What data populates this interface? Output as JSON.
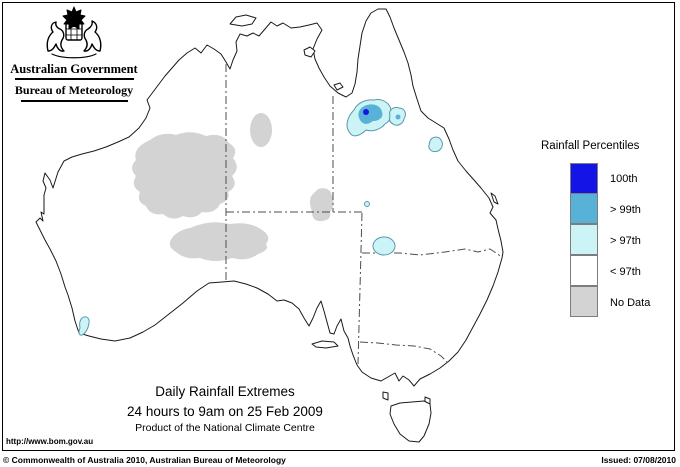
{
  "header": {
    "government_label": "Australian Government",
    "agency_label": "Bureau of Meteorology"
  },
  "legend": {
    "title": "Rainfall Percentiles",
    "entries": [
      {
        "key": "p100",
        "label": "100th",
        "color": "#1414e6"
      },
      {
        "key": "p99",
        "label": "> 99th",
        "color": "#58b2d8"
      },
      {
        "key": "p97",
        "label": "> 97th",
        "color": "#ccf4f6"
      },
      {
        "key": "lt97",
        "label": "< 97th",
        "color": "#ffffff"
      },
      {
        "key": "nodata",
        "label": "No Data",
        "color": "#d3d3d3"
      }
    ]
  },
  "title_block": {
    "line1": "Daily Rainfall Extremes",
    "line2": "24 hours to 9am on 25 Feb 2009",
    "line3": "Product of the National Climate Centre"
  },
  "footer": {
    "url": "http://www.bom.gov.au",
    "copyright": "© Commonwealth of Australia 2010, Australian Bureau of Meteorology",
    "issued": "Issued: 07/08/2010"
  },
  "map": {
    "colors": {
      "coastline": "#1a1a1a",
      "state_border": "#4d4d4d",
      "patch_outline": "#5a98ae"
    },
    "patches": [
      {
        "id": "nw-qld-large",
        "class": "> 97th with > 99th core and 100th spot",
        "location": "northwest Queensland"
      },
      {
        "id": "nw-qld-small",
        "class": "> 97th with > 99th spot",
        "location": "northwest Queensland"
      },
      {
        "id": "qld-coastal",
        "class": "> 97th",
        "location": "central Queensland coast"
      },
      {
        "id": "corner-speck",
        "class": "> 97th",
        "location": "SA/NT/QLD border corner"
      },
      {
        "id": "sa-border-blob",
        "class": "> 97th",
        "location": "northern South Australia"
      },
      {
        "id": "sw-wa-blob",
        "class": "> 97th",
        "location": "southwest Western Australia"
      },
      {
        "id": "wa-nodata-oval",
        "class": "No Data",
        "location": "northern interior WA"
      },
      {
        "id": "wa-nodata-large",
        "class": "No Data",
        "location": "central interior WA"
      },
      {
        "id": "wa-nodata-south",
        "class": "No Data",
        "location": "southern interior WA"
      },
      {
        "id": "nt-sa-nodata",
        "class": "No Data",
        "location": "NT/SA border"
      }
    ]
  }
}
